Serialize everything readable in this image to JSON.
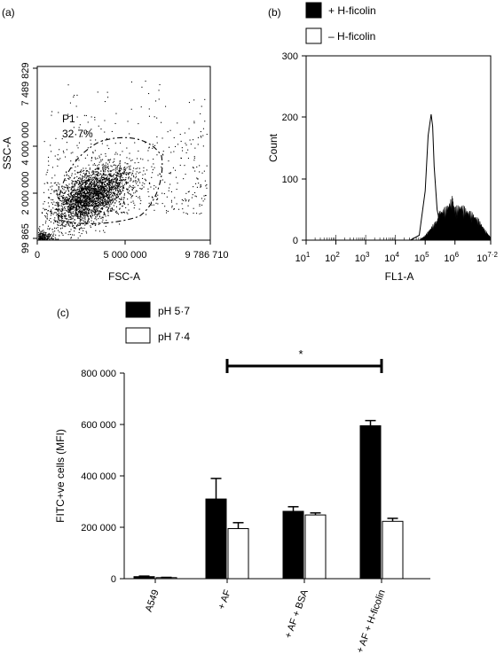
{
  "chart_data": [
    {
      "panel_label": "(a)",
      "type": "scatter",
      "xlabel": "FSC-A",
      "ylabel": "SSC-A",
      "x_ticks": [
        "0",
        "5 000 000",
        "9 786 710"
      ],
      "y_ticks": [
        "99 865",
        "2 000 000",
        "4 000 000",
        "7 489 829"
      ],
      "xlim": [
        0,
        9786710
      ],
      "ylim": [
        99865,
        7489829
      ],
      "gate": {
        "name": "P1",
        "percent": "32·7%"
      },
      "cloud": {
        "center_x": 3000000,
        "center_y": 2000000,
        "spread_x": 1100000,
        "spread_y": 650000,
        "n_points": 2600
      }
    },
    {
      "panel_label": "(b)",
      "type": "area",
      "xlabel": "FL1-A",
      "ylabel": "Count",
      "scale": "log",
      "x_ticks_base": [
        "10",
        "10",
        "10",
        "10",
        "10",
        "10",
        "10"
      ],
      "x_ticks_exp": [
        "1",
        "2",
        "3",
        "4",
        "5",
        "6",
        "7·2"
      ],
      "y_ticks": [
        "0",
        "100",
        "200",
        "300"
      ],
      "ylim": [
        0,
        300
      ],
      "series": [
        {
          "name": "+ H-ficolin",
          "fill": "filled",
          "x_log": [
            4.8,
            5.0,
            5.2,
            5.4,
            5.5,
            5.7,
            5.9,
            6.0,
            6.2,
            6.4,
            6.6,
            6.8,
            7.0,
            7.2
          ],
          "y": [
            0,
            8,
            22,
            35,
            50,
            55,
            72,
            55,
            60,
            52,
            45,
            35,
            18,
            5
          ]
        },
        {
          "name": "– H-ficolin",
          "fill": "open",
          "x_log": [
            4.5,
            4.8,
            5.0,
            5.1,
            5.2,
            5.25,
            5.3,
            5.4,
            5.5,
            5.7,
            6.0,
            6.5,
            7.2
          ],
          "y": [
            0,
            8,
            80,
            170,
            205,
            185,
            120,
            50,
            25,
            10,
            4,
            2,
            0
          ]
        }
      ]
    },
    {
      "panel_label": "(c)",
      "type": "bar",
      "ylabel": "FITC+ve cells (MFI)",
      "categories": [
        "A549",
        "+ AF",
        "+ AF + BSA",
        "+ AF + H-ficolin"
      ],
      "y_ticks": [
        "0",
        "200 000",
        "400 000",
        "600 000",
        "800 000"
      ],
      "ylim": [
        0,
        800000
      ],
      "series": [
        {
          "name": "pH 5·7",
          "fill": "filled",
          "values": [
            8000,
            310000,
            262000,
            595000
          ],
          "errors": [
            2000,
            80000,
            18000,
            20000
          ]
        },
        {
          "name": "pH 7·4",
          "fill": "open",
          "values": [
            4000,
            195000,
            248000,
            223000
          ],
          "errors": [
            1000,
            23000,
            8000,
            12000
          ]
        }
      ],
      "significance": {
        "label": "*",
        "from": "+ AF",
        "to": "+ AF + H-ficolin"
      }
    }
  ]
}
